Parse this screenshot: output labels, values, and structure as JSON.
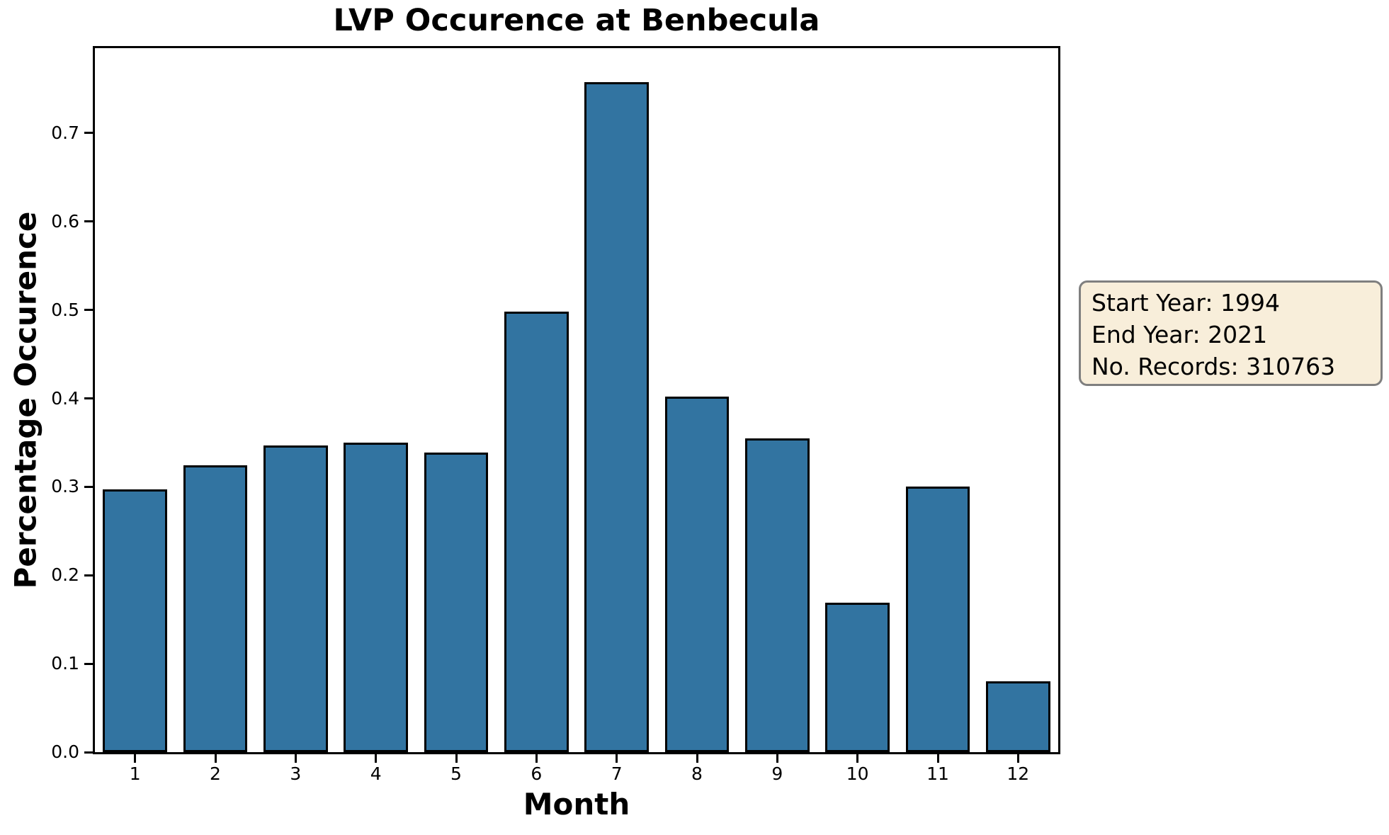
{
  "chart_data": {
    "type": "bar",
    "title": "LVP Occurence at Benbecula",
    "xlabel": "Month",
    "ylabel": "Percentage Occurence",
    "categories": [
      "1",
      "2",
      "3",
      "4",
      "5",
      "6",
      "7",
      "8",
      "9",
      "10",
      "11",
      "12"
    ],
    "values": [
      0.297,
      0.324,
      0.347,
      0.35,
      0.339,
      0.498,
      0.758,
      0.402,
      0.355,
      0.169,
      0.3,
      0.08
    ],
    "ylim": [
      0.0,
      0.796
    ],
    "yticks": [
      0.0,
      0.1,
      0.2,
      0.3,
      0.4,
      0.5,
      0.6,
      0.7
    ],
    "ytick_labels": [
      "0.0",
      "0.1",
      "0.2",
      "0.3",
      "0.4",
      "0.5",
      "0.6",
      "0.7"
    ],
    "bar_width_fraction": 0.8,
    "grid": false,
    "legend": null,
    "colors": {
      "bar_fill": "#3274a1",
      "bar_edge": "#000000",
      "spine": "#000000",
      "text": "#000000"
    },
    "annotation": {
      "lines": [
        "Start Year: 1994",
        "End Year: 2021",
        "No. Records: 310763"
      ],
      "bg_color": "#f8eeda",
      "border_color": "#7f7f7f"
    }
  }
}
